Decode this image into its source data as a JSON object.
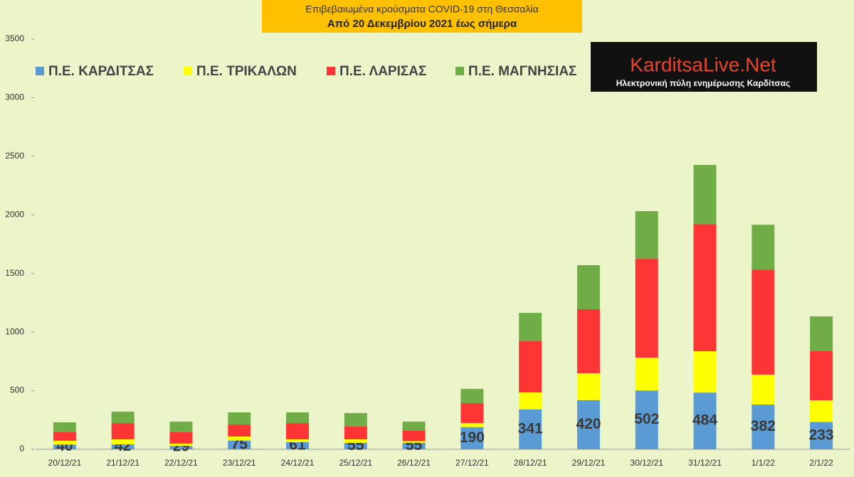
{
  "chart_data": {
    "type": "stacked_bar",
    "title": "Επιβεβαιωμένα κρούσματα COVID-19 στη Θεσσαλία",
    "subtitle": "Από 20 Δεκεμβρίου 2021 έως σήμερα",
    "categories": [
      "20/12/21",
      "21/12/21",
      "22/12/21",
      "23/12/21",
      "24/12/21",
      "25/12/21",
      "26/12/21",
      "27/12/21",
      "28/12/21",
      "29/12/21",
      "30/12/21",
      "31/12/21",
      "1/1/22",
      "2/1/22"
    ],
    "series": [
      {
        "name": "Π.Ε. ΚΑΡΔΙΤΣΑΣ",
        "color": "#5b9bd5",
        "values": [
          40,
          42,
          29,
          75,
          61,
          55,
          55,
          190,
          341,
          420,
          502,
          484,
          382,
          233
        ],
        "show_labels": true
      },
      {
        "name": "Π.Ε. ΤΡΙΚΑΛΩΝ",
        "color": "#ffff00",
        "values": [
          33,
          43,
          19,
          34,
          24,
          30,
          15,
          34,
          144,
          229,
          280,
          353,
          255,
          185
        ]
      },
      {
        "name": "Π.Ε. ΛΑΡΙΣΑΣ",
        "color": "#ff3535",
        "values": [
          73,
          139,
          98,
          103,
          139,
          109,
          88,
          170,
          437,
          546,
          843,
          1085,
          897,
          419
        ]
      },
      {
        "name": "Π.Ε. ΜΑΓΝΗΣΙΑΣ",
        "color": "#70ad47",
        "values": [
          84,
          97,
          90,
          103,
          91,
          115,
          78,
          121,
          242,
          376,
          407,
          504,
          382,
          297
        ]
      }
    ],
    "ylim": [
      0,
      3500
    ],
    "yticks": [
      0,
      500,
      1000,
      1500,
      2000,
      2500,
      3000,
      3500
    ],
    "grid": false
  },
  "logo": {
    "name": "KarditsaLive.Net",
    "tagline": "Ηλεκτρονική πύλη ενημέρωσης Καρδίτσας"
  }
}
